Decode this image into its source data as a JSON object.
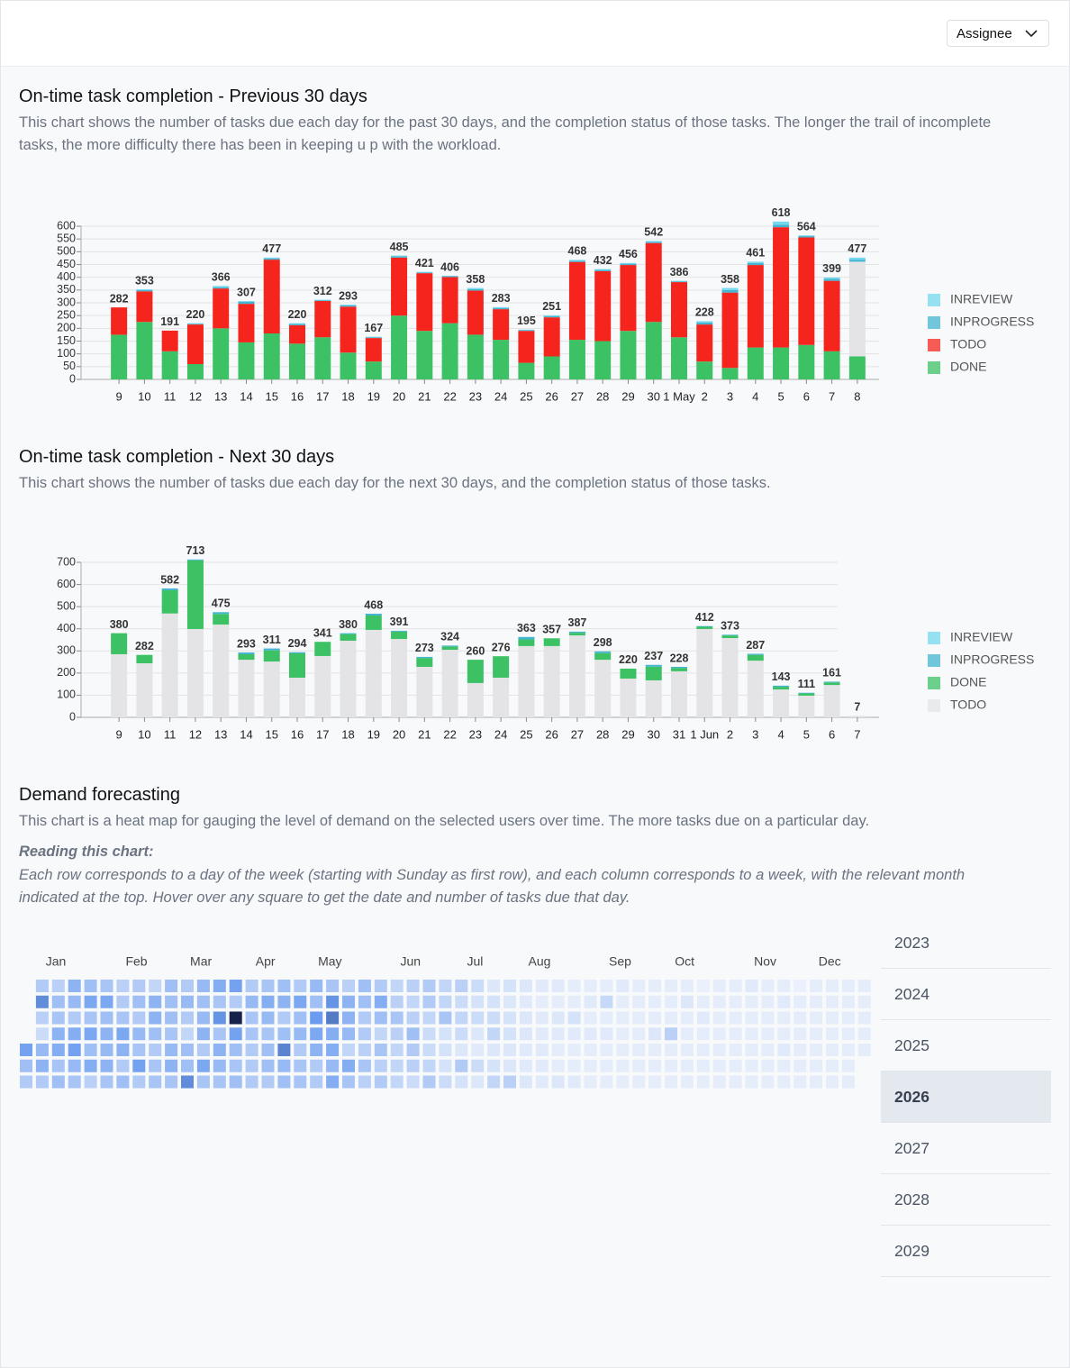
{
  "header": {
    "button": "Assignee"
  },
  "chart_data": [
    {
      "type": "stacked_bar",
      "title": "On-time task completion - Previous 30 days",
      "subtitle": "This chart shows the number of tasks due each day for the past 30 days, and the completion status of those tasks. The longer the trail of incomplete tasks, the more difficulty there has been in keeping u p with the workload.",
      "categories": [
        "9",
        "10",
        "11",
        "12",
        "13",
        "14",
        "15",
        "16",
        "17",
        "18",
        "19",
        "20",
        "21",
        "22",
        "23",
        "24",
        "25",
        "26",
        "27",
        "28",
        "29",
        "30",
        "1 May",
        "2",
        "3",
        "4",
        "5",
        "6",
        "7",
        "8"
      ],
      "series": [
        {
          "name": "DONE",
          "color": "#3cc265",
          "values": [
            175,
            225,
            110,
            60,
            200,
            145,
            180,
            140,
            165,
            105,
            70,
            250,
            190,
            220,
            175,
            155,
            65,
            90,
            155,
            150,
            190,
            225,
            165,
            70,
            45,
            125,
            125,
            135,
            110,
            90
          ]
        },
        {
          "name": "TODO",
          "color": "#f5251e",
          "colors": [
            "#f5251e",
            "#f5251e",
            "#f5251e",
            "#f5251e",
            "#f5251e",
            "#f5251e",
            "#f5251e",
            "#f5251e",
            "#f5251e",
            "#f5251e",
            "#f5251e",
            "#f5251e",
            "#f5251e",
            "#f5251e",
            "#f5251e",
            "#f5251e",
            "#f5251e",
            "#f5251e",
            "#f5251e",
            "#f5251e",
            "#f5251e",
            "#f5251e",
            "#f5251e",
            "#f5251e",
            "#f5251e",
            "#f5251e",
            "#f5251e",
            "#f5251e",
            "#f5251e",
            "#e4e4e7"
          ],
          "values": [
            107,
            120,
            81,
            155,
            156,
            151,
            289,
            72,
            142,
            180,
            92,
            227,
            226,
            181,
            173,
            120,
            125,
            153,
            305,
            274,
            258,
            309,
            216,
            145,
            295,
            323,
            471,
            421,
            276,
            371
          ]
        },
        {
          "name": "INPROGRESS",
          "color": "#45b4d0",
          "values": [
            0,
            5,
            0,
            3,
            5,
            8,
            5,
            5,
            3,
            5,
            3,
            5,
            3,
            3,
            5,
            5,
            3,
            5,
            5,
            5,
            5,
            5,
            3,
            8,
            10,
            8,
            10,
            5,
            8,
            8
          ]
        },
        {
          "name": "INREVIEW",
          "color": "#74d8ee",
          "values": [
            0,
            3,
            0,
            2,
            5,
            3,
            3,
            3,
            2,
            3,
            2,
            3,
            2,
            2,
            5,
            3,
            2,
            3,
            3,
            3,
            3,
            3,
            2,
            5,
            8,
            5,
            12,
            3,
            5,
            8
          ]
        }
      ],
      "totals": [
        282,
        353,
        191,
        220,
        366,
        307,
        477,
        220,
        312,
        293,
        167,
        485,
        421,
        406,
        358,
        283,
        195,
        251,
        468,
        432,
        456,
        542,
        386,
        228,
        358,
        461,
        618,
        564,
        399,
        477
      ],
      "ylim": [
        0,
        600
      ],
      "yticks": [
        0,
        50,
        100,
        150,
        200,
        250,
        300,
        350,
        400,
        450,
        500,
        550,
        600
      ],
      "grid": true,
      "legend": "right"
    },
    {
      "type": "stacked_bar",
      "title": "On-time task completion - Next 30 days",
      "subtitle": "This chart shows the number of tasks due each day for the next 30 days, and the completion status of those tasks.",
      "categories": [
        "9",
        "10",
        "11",
        "12",
        "13",
        "14",
        "15",
        "16",
        "17",
        "18",
        "19",
        "20",
        "21",
        "22",
        "23",
        "24",
        "25",
        "26",
        "27",
        "28",
        "29",
        "30",
        "31",
        "1 Jun",
        "2",
        "3",
        "4",
        "5",
        "6",
        "7"
      ],
      "series": [
        {
          "name": "TODO",
          "color": "#e4e4e7",
          "values": [
            285,
            244,
            469,
            399,
            419,
            260,
            252,
            179,
            277,
            346,
            395,
            354,
            228,
            305,
            155,
            179,
            322,
            322,
            370,
            260,
            175,
            167,
            208,
            399,
            358,
            256,
            126,
            98,
            146,
            7
          ]
        },
        {
          "name": "DONE",
          "color": "#3cc265",
          "values": [
            95,
            38,
            105,
            310,
            48,
            25,
            50,
            110,
            64,
            30,
            65,
            33,
            40,
            15,
            105,
            97,
            30,
            35,
            12,
            30,
            45,
            62,
            15,
            10,
            12,
            26,
            12,
            10,
            12,
            0
          ]
        },
        {
          "name": "INPROGRESS",
          "color": "#45b4d0",
          "values": [
            0,
            0,
            8,
            4,
            8,
            8,
            9,
            5,
            0,
            4,
            8,
            4,
            5,
            4,
            0,
            0,
            11,
            0,
            5,
            8,
            0,
            8,
            5,
            3,
            3,
            5,
            5,
            3,
            3,
            0
          ]
        },
        {
          "name": "INREVIEW",
          "color": "#74d8ee",
          "values": [
            0,
            0,
            0,
            0,
            0,
            0,
            0,
            0,
            0,
            0,
            0,
            0,
            0,
            0,
            0,
            0,
            0,
            0,
            0,
            0,
            0,
            0,
            0,
            0,
            0,
            0,
            0,
            0,
            0,
            0
          ]
        }
      ],
      "totals": [
        380,
        282,
        582,
        713,
        475,
        293,
        311,
        294,
        341,
        380,
        468,
        391,
        273,
        324,
        260,
        276,
        363,
        357,
        387,
        298,
        220,
        237,
        228,
        412,
        373,
        287,
        143,
        111,
        161,
        7
      ],
      "ylim": [
        0,
        700
      ],
      "yticks": [
        0,
        100,
        200,
        300,
        400,
        500,
        600,
        700
      ],
      "grid": true,
      "legend": "right"
    },
    {
      "type": "heatmap",
      "title": "Demand forecasting",
      "subtitle": "This chart is a heat map for gauging the level of demand on the selected users over time. The more tasks due on a particular day.",
      "note_title": "Reading this chart:",
      "note": "Each row corresponds to a day of the week (starting with Sunday as first row), and each column corresponds to a week, with the relevant month indicated at the top. Hover over any square to get the date and number of tasks due that day.",
      "months": [
        "Jan",
        "Feb",
        "Mar",
        "Apr",
        "May",
        "Jun",
        "Jul",
        "Aug",
        "Sep",
        "Oct",
        "Nov",
        "Dec"
      ],
      "color_scale": [
        "#eef3fc",
        "#6b9cf0",
        "#15234a"
      ],
      "values": [
        [
          null,
          14,
          12,
          22,
          18,
          16,
          12,
          14,
          10,
          18,
          14,
          20,
          24,
          28,
          14,
          16,
          18,
          14,
          20,
          16,
          12,
          18,
          14,
          10,
          12,
          14,
          10,
          12,
          8,
          4,
          6,
          4,
          3,
          3,
          2,
          2,
          2,
          3,
          2,
          2,
          2,
          2,
          1,
          2,
          2,
          3,
          2,
          2,
          1,
          2,
          2,
          2,
          2
        ],
        [
          null,
          34,
          18,
          20,
          26,
          26,
          14,
          18,
          22,
          18,
          20,
          18,
          16,
          14,
          20,
          24,
          22,
          26,
          18,
          32,
          22,
          18,
          24,
          12,
          10,
          14,
          10,
          8,
          6,
          6,
          4,
          3,
          2,
          2,
          2,
          3,
          9,
          2,
          2,
          2,
          2,
          4,
          2,
          2,
          2,
          2,
          2,
          3,
          2,
          2,
          2,
          2,
          2
        ],
        [
          null,
          12,
          16,
          14,
          16,
          18,
          16,
          14,
          22,
          18,
          14,
          20,
          32,
          60,
          16,
          20,
          14,
          18,
          30,
          38,
          22,
          14,
          18,
          16,
          12,
          10,
          16,
          10,
          8,
          8,
          6,
          4,
          3,
          4,
          6,
          2,
          2,
          2,
          2,
          2,
          2,
          2,
          3,
          2,
          2,
          2,
          2,
          2,
          2,
          2,
          2,
          2,
          2
        ],
        [
          null,
          8,
          22,
          24,
          26,
          22,
          26,
          20,
          18,
          16,
          10,
          22,
          16,
          28,
          16,
          16,
          18,
          20,
          26,
          24,
          20,
          14,
          10,
          12,
          18,
          8,
          6,
          8,
          4,
          10,
          6,
          4,
          3,
          3,
          3,
          3,
          3,
          2,
          2,
          4,
          12,
          2,
          2,
          2,
          2,
          2,
          2,
          2,
          2,
          2,
          2,
          2,
          2
        ],
        [
          28,
          20,
          24,
          28,
          18,
          20,
          22,
          16,
          14,
          20,
          18,
          14,
          22,
          18,
          14,
          18,
          36,
          14,
          22,
          24,
          10,
          12,
          16,
          10,
          14,
          8,
          6,
          4,
          3,
          4,
          4,
          3,
          3,
          2,
          2,
          2,
          2,
          2,
          2,
          2,
          2,
          2,
          2,
          2,
          2,
          2,
          2,
          3,
          2,
          2,
          2,
          2,
          2
        ],
        [
          18,
          22,
          16,
          20,
          24,
          22,
          14,
          28,
          16,
          22,
          18,
          26,
          20,
          16,
          14,
          18,
          20,
          16,
          14,
          20,
          24,
          16,
          12,
          10,
          12,
          10,
          6,
          14,
          8,
          6,
          4,
          3,
          3,
          2,
          2,
          2,
          2,
          2,
          2,
          2,
          2,
          2,
          2,
          2,
          2,
          2,
          2,
          2,
          2,
          2,
          2,
          2,
          null
        ],
        [
          14,
          14,
          18,
          16,
          12,
          16,
          18,
          14,
          16,
          16,
          34,
          16,
          16,
          18,
          14,
          14,
          18,
          16,
          14,
          24,
          16,
          12,
          14,
          10,
          8,
          14,
          8,
          6,
          4,
          10,
          12,
          4,
          3,
          4,
          3,
          2,
          2,
          2,
          2,
          2,
          2,
          2,
          2,
          2,
          2,
          2,
          2,
          2,
          2,
          2,
          2,
          2,
          null
        ]
      ]
    }
  ],
  "year_list": {
    "items": [
      "2023",
      "2024",
      "2025",
      "2026",
      "2027",
      "2028",
      "2029"
    ],
    "selected": 3
  }
}
